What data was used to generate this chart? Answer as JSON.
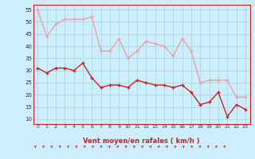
{
  "title": "",
  "xlabel": "Vent moyen/en rafales ( km/h )",
  "ylabel": "",
  "bg_color": "#cceeff",
  "grid_color": "#aadddd",
  "line_color_rafales": "#f0a0a0",
  "line_color_moyen": "#cc2222",
  "arrow_color": "#cc2222",
  "xlim": [
    -0.5,
    23.5
  ],
  "ylim": [
    8,
    57
  ],
  "yticks": [
    10,
    15,
    20,
    25,
    30,
    35,
    40,
    45,
    50,
    55
  ],
  "xticks": [
    0,
    1,
    2,
    3,
    4,
    5,
    6,
    7,
    8,
    9,
    10,
    11,
    12,
    13,
    14,
    15,
    16,
    17,
    18,
    19,
    20,
    21,
    22,
    23
  ],
  "hours": [
    0,
    1,
    2,
    3,
    4,
    5,
    6,
    7,
    8,
    9,
    10,
    11,
    12,
    13,
    14,
    15,
    16,
    17,
    18,
    19,
    20,
    21,
    22,
    23
  ],
  "rafales": [
    55,
    44,
    49,
    51,
    51,
    51,
    52,
    38,
    38,
    43,
    35,
    38,
    42,
    41,
    40,
    36,
    43,
    38,
    25,
    26,
    26,
    26,
    19,
    19
  ],
  "moyen": [
    31,
    29,
    31,
    31,
    30,
    33,
    27,
    23,
    24,
    24,
    23,
    26,
    25,
    24,
    24,
    23,
    24,
    21,
    16,
    17,
    21,
    11,
    16,
    14
  ]
}
